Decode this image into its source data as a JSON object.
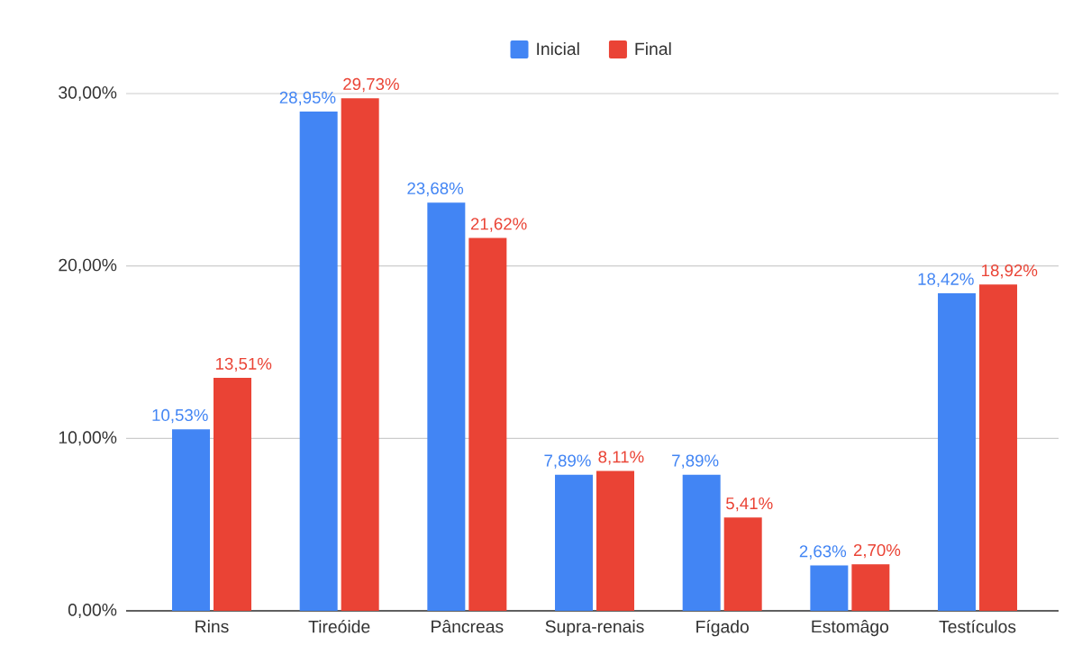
{
  "chart_data": {
    "type": "bar",
    "categories": [
      "Rins",
      "Tireóide",
      "Pâncreas",
      "Supra-renais",
      "Fígado",
      "Estomâgo",
      "Testículos"
    ],
    "series": [
      {
        "name": "Inicial",
        "color": "#4285f4",
        "values": [
          10.53,
          28.95,
          23.68,
          7.89,
          7.89,
          2.63,
          18.42
        ],
        "value_labels": [
          "10,53%",
          "28,95%",
          "23,68%",
          "7,89%",
          "7,89%",
          "2,63%",
          "18,42%"
        ]
      },
      {
        "name": "Final",
        "color": "#ea4335",
        "values": [
          13.51,
          29.73,
          21.62,
          8.11,
          5.41,
          2.7,
          18.92
        ],
        "value_labels": [
          "13,51%",
          "29,73%",
          "21,62%",
          "8,11%",
          "5,41%",
          "2,70%",
          "18,92%"
        ]
      }
    ],
    "ylim": [
      0,
      30
    ],
    "yticks": [
      {
        "value": 0,
        "label": "0,00%"
      },
      {
        "value": 10,
        "label": "10,00%"
      },
      {
        "value": 20,
        "label": "20,00%"
      },
      {
        "value": 30,
        "label": "30,00%"
      }
    ],
    "grid": "y",
    "legend": "top"
  }
}
